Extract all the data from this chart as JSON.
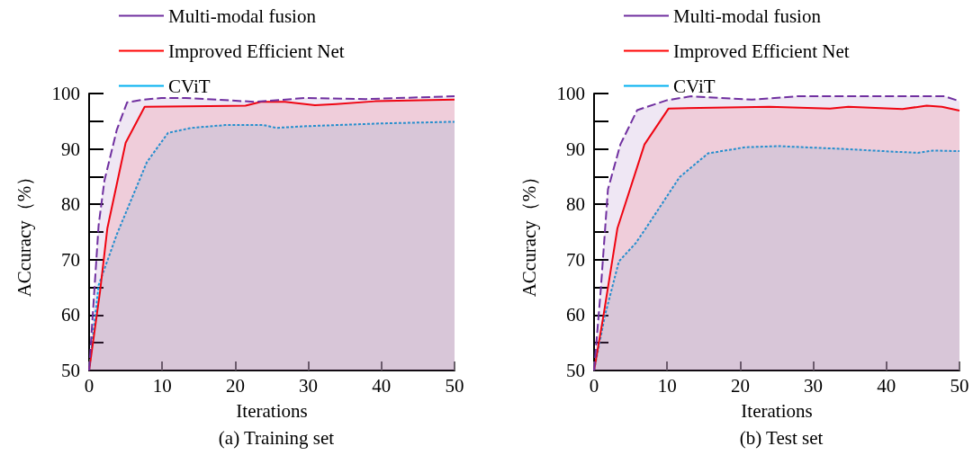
{
  "chart_data": [
    {
      "type": "area",
      "title": "(a) Training set",
      "xlabel": "Iterations",
      "ylabel": "ACcuracy（%）",
      "xlim": [
        0,
        50
      ],
      "xticks": [
        0,
        10,
        20,
        30,
        40,
        50
      ],
      "ylim": [
        50,
        100
      ],
      "yticks": [
        50,
        {
          "value": 55,
          "label": null
        },
        60,
        {
          "value": 65,
          "label": null
        },
        70,
        {
          "value": 75,
          "label": null
        },
        80,
        {
          "value": 85,
          "label": null
        },
        90,
        {
          "value": 95,
          "label": null
        },
        100
      ],
      "legend": "top left",
      "grid": false,
      "marker": "none",
      "series": [
        {
          "name": "Multi-modal fusion",
          "color": "#7030a0",
          "line_style": "dashed",
          "x": [
            0,
            1.3,
            2.1,
            3.8,
            5.2,
            7.5,
            9.9,
            13.2,
            22.7,
            29.7,
            37.9,
            50
          ],
          "values": [
            50,
            76.2,
            84.3,
            93.5,
            98.4,
            98.9,
            99.2,
            99.2,
            98.5,
            99.2,
            99,
            99.5
          ]
        },
        {
          "name": "Improved Efficient Net",
          "color": "#ff0000",
          "line_style": "solid",
          "x": [
            0,
            1.5,
            2.5,
            5,
            7.6,
            21.4,
            23.5,
            26.8,
            30.9,
            33.8,
            39.1,
            50
          ],
          "values": [
            50,
            64.3,
            75.7,
            91.1,
            97.6,
            97.8,
            98.5,
            98.5,
            97.9,
            98.1,
            98.6,
            98.9
          ]
        },
        {
          "name": "CViT",
          "color": "#00b0f0",
          "line_style": "dotted",
          "x": [
            0,
            1.3,
            3.8,
            5,
            7.9,
            10.8,
            14,
            18.6,
            23.9,
            25.6,
            29.7,
            33.8,
            39.9,
            50
          ],
          "values": [
            50,
            65.4,
            74.6,
            78.4,
            87.6,
            92.9,
            93.8,
            94.3,
            94.3,
            93.8,
            94.1,
            94.3,
            94.6,
            94.9
          ]
        }
      ]
    },
    {
      "type": "area",
      "title": "(b) Test set",
      "xlabel": "Iterations",
      "ylabel": "ACcuracy（%）",
      "xlim": [
        0,
        50
      ],
      "xticks": [
        0,
        10,
        20,
        30,
        40,
        50
      ],
      "ylim": [
        50,
        100
      ],
      "yticks": [
        50,
        {
          "value": 55,
          "label": null
        },
        60,
        {
          "value": 65,
          "label": null
        },
        70,
        {
          "value": 75,
          "label": null
        },
        80,
        {
          "value": 85,
          "label": null
        },
        90,
        {
          "value": 95,
          "label": null
        },
        100
      ],
      "legend": "top left",
      "grid": false,
      "marker": "none",
      "series": [
        {
          "name": "Multi-modal fusion",
          "color": "#7030a0",
          "line_style": "dashed",
          "x": [
            0,
            0.9,
            1.9,
            3.6,
            5.9,
            10,
            13.3,
            21.6,
            27.8,
            48,
            50
          ],
          "values": [
            50,
            64.3,
            82.7,
            90.8,
            97,
            98.8,
            99.5,
            98.9,
            99.5,
            99.5,
            98.6
          ]
        },
        {
          "name": "Improved Efficient Net",
          "color": "#ff0000",
          "line_style": "solid",
          "x": [
            0,
            1.3,
            3.2,
            6.9,
            10.2,
            24,
            32.3,
            34.8,
            42.2,
            45.5,
            47.6,
            50
          ],
          "values": [
            50,
            60,
            75.7,
            90.8,
            97.3,
            97.6,
            97.3,
            97.6,
            97.2,
            97.8,
            97.6,
            96.9
          ]
        },
        {
          "name": "CViT",
          "color": "#00b0f0",
          "line_style": "dotted",
          "x": [
            0,
            1.5,
            3.4,
            5.7,
            7.1,
            11.7,
            15.6,
            20.7,
            25.3,
            34,
            41,
            44.3,
            46.4,
            50
          ],
          "values": [
            50,
            60,
            69.7,
            73,
            75.7,
            84.9,
            89.2,
            90.3,
            90.5,
            90,
            89.5,
            89.3,
            89.7,
            89.6
          ]
        }
      ]
    }
  ]
}
